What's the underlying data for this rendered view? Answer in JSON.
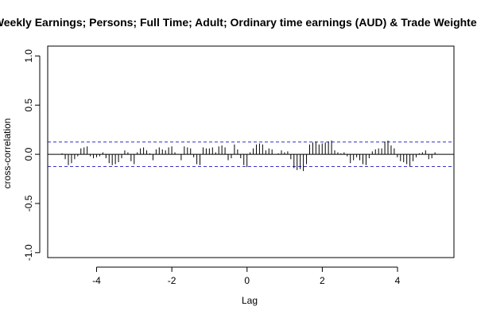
{
  "chart_data": {
    "type": "bar",
    "subtype": "cross-correlation stems",
    "title": "Weekly Earnings; Persons; Full Time; Adult; Ordinary time earnings (AUD) & Trade Weighted",
    "xlabel": "Lag",
    "ylabel": "cross-correlation",
    "xlim": [
      -5.3,
      5.5
    ],
    "ylim": [
      -1.05,
      1.1
    ],
    "xticks": [
      -4,
      -2,
      0,
      2,
      4
    ],
    "xtick_labels": [
      "-4",
      "-2",
      "0",
      "2",
      "4"
    ],
    "yticks": [
      -1.0,
      -0.5,
      0.0,
      0.5,
      1.0
    ],
    "ytick_labels": [
      "-1.0",
      "-0.5",
      "0.0",
      "0.5",
      "1.0"
    ],
    "confidence_bound": 0.125,
    "lag_step": 0.0833,
    "lag_start": -4.917,
    "values": [
      0.01,
      -0.05,
      -0.11,
      -0.09,
      -0.05,
      -0.02,
      0.06,
      0.07,
      0.08,
      -0.02,
      -0.04,
      -0.03,
      -0.02,
      0.02,
      -0.04,
      -0.09,
      -0.11,
      -0.1,
      -0.08,
      -0.04,
      0.04,
      0.02,
      -0.07,
      -0.1,
      0.02,
      0.06,
      0.07,
      0.04,
      0.01,
      -0.06,
      0.05,
      0.07,
      0.05,
      0.04,
      0.07,
      0.08,
      0.02,
      0.0,
      -0.06,
      0.08,
      0.07,
      0.06,
      -0.03,
      -0.1,
      -0.11,
      0.07,
      0.06,
      0.06,
      0.07,
      0.02,
      0.08,
      0.09,
      0.07,
      -0.06,
      -0.04,
      0.1,
      0.05,
      -0.04,
      -0.11,
      -0.13,
      0.02,
      0.06,
      0.1,
      0.11,
      0.1,
      0.04,
      0.06,
      0.05,
      0.0,
      0.01,
      0.04,
      0.02,
      0.03,
      -0.05,
      -0.14,
      -0.16,
      -0.15,
      -0.17,
      -0.1,
      0.1,
      0.12,
      0.13,
      0.1,
      0.11,
      0.12,
      0.13,
      0.14,
      0.04,
      0.02,
      0.01,
      0.02,
      -0.02,
      -0.09,
      -0.06,
      -0.03,
      -0.06,
      -0.1,
      -0.11,
      -0.04,
      0.03,
      0.05,
      0.06,
      0.06,
      0.13,
      0.14,
      0.09,
      0.06,
      -0.03,
      -0.07,
      -0.08,
      -0.1,
      -0.12,
      -0.07,
      -0.03,
      0.01,
      0.02,
      0.04,
      -0.05,
      -0.04,
      0.02
    ],
    "colors": {
      "stem": "#000000",
      "zero_line": "#000000",
      "confidence": "#3333cc",
      "frame": "#000000"
    }
  }
}
